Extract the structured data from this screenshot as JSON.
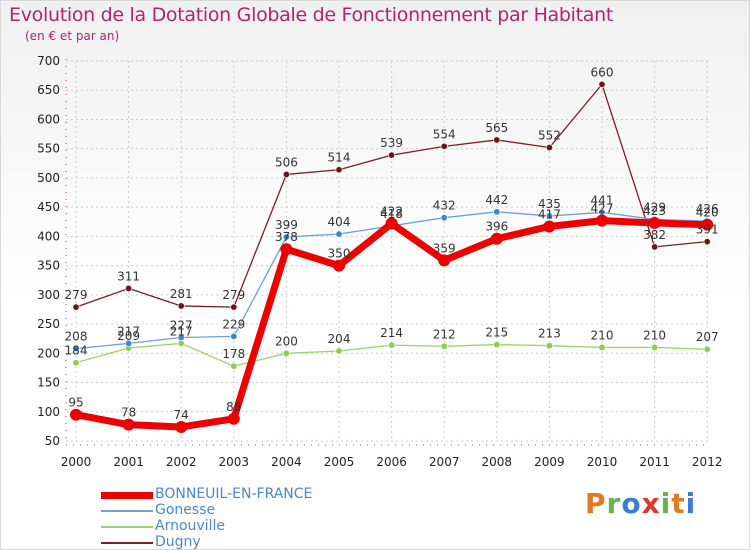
{
  "title": "Evolution de la Dotation Globale de Fonctionnement par Habitant",
  "subtitle": "(en € et par an)",
  "logo": {
    "text": "Proxiti",
    "colors": [
      "#e07a1f",
      "#6ab04c",
      "#3a7bd5",
      "#d93a2b",
      "#6ab04c",
      "#e07a1f",
      "#3a7bd5"
    ]
  },
  "colors": {
    "grid": "#cccccc",
    "axis_marks": "#cc3355",
    "title": "#b0266a",
    "legend_text": "#4a88c7"
  },
  "chart_data": {
    "type": "line",
    "title": "Evolution de la Dotation Globale de Fonctionnement par Habitant",
    "subtitle": "(en € et par an)",
    "xlabel": "",
    "ylabel": "",
    "x": [
      "2000",
      "2001",
      "2002",
      "2003",
      "2004",
      "2005",
      "2006",
      "2007",
      "2008",
      "2009",
      "2010",
      "2011",
      "2012"
    ],
    "yticks": [
      50,
      100,
      150,
      200,
      250,
      300,
      350,
      400,
      450,
      500,
      550,
      600,
      650,
      700
    ],
    "ylim": [
      50,
      700
    ],
    "grid": true,
    "legend_position": "bottom-left",
    "series": [
      {
        "name": "Dugny",
        "color": "#7a1f22",
        "markerColor": "#6b1518",
        "width": 1.3,
        "marker": 3.2,
        "values": [
          279,
          311,
          281,
          279,
          506,
          514,
          539,
          554,
          565,
          552,
          660,
          382,
          391
        ]
      },
      {
        "name": "Arnouville",
        "color": "#9ad46a",
        "markerColor": "#8ccc4e",
        "width": 1.3,
        "marker": 3.2,
        "values": [
          184,
          209,
          217,
          178,
          200,
          204,
          214,
          212,
          215,
          213,
          210,
          210,
          207
        ]
      },
      {
        "name": "Gonesse",
        "color": "#6fa0d6",
        "markerColor": "#3a86cf",
        "width": 1.3,
        "marker": 3.2,
        "values": [
          208,
          217,
          227,
          229,
          399,
          404,
          418,
          432,
          442,
          435,
          441,
          429,
          426
        ]
      },
      {
        "name": "BONNEUIL-EN-FRANCE",
        "color": "#ee0000",
        "markerColor": "#ee0000",
        "width": 7,
        "marker": 6,
        "values": [
          95,
          78,
          74,
          88,
          378,
          350,
          422,
          359,
          396,
          417,
          427,
          423,
          420
        ]
      }
    ],
    "labels": [
      {
        "text": "279",
        "x": "2000",
        "y": 279
      },
      {
        "text": "311",
        "x": "2001",
        "y": 311
      },
      {
        "text": "281",
        "x": "2002",
        "y": 281
      },
      {
        "text": "279",
        "x": "2003",
        "y": 279
      },
      {
        "text": "506",
        "x": "2004",
        "y": 506
      },
      {
        "text": "514",
        "x": "2005",
        "y": 514
      },
      {
        "text": "539",
        "x": "2006",
        "y": 539
      },
      {
        "text": "554",
        "x": "2007",
        "y": 554
      },
      {
        "text": "565",
        "x": "2008",
        "y": 565
      },
      {
        "text": "552",
        "x": "2009",
        "y": 552
      },
      {
        "text": "660",
        "x": "2010",
        "y": 660
      },
      {
        "text": "382",
        "x": "2011",
        "y": 382
      },
      {
        "text": "391",
        "x": "2012",
        "y": 391
      },
      {
        "text": "208",
        "x": "2000",
        "y": 208
      },
      {
        "text": "217",
        "x": "2001",
        "y": 217
      },
      {
        "text": "227",
        "x": "2002",
        "y": 227
      },
      {
        "text": "229",
        "x": "2003",
        "y": 229
      },
      {
        "text": "399",
        "x": "2004",
        "y": 399
      },
      {
        "text": "404",
        "x": "2005",
        "y": 404
      },
      {
        "text": "418",
        "x": "2006",
        "y": 418
      },
      {
        "text": "432",
        "x": "2007",
        "y": 432
      },
      {
        "text": "442",
        "x": "2008",
        "y": 442
      },
      {
        "text": "435",
        "x": "2009",
        "y": 435
      },
      {
        "text": "441",
        "x": "2010",
        "y": 441
      },
      {
        "text": "429",
        "x": "2011",
        "y": 429
      },
      {
        "text": "426",
        "x": "2012",
        "y": 426
      },
      {
        "text": "184",
        "x": "2000",
        "y": 184
      },
      {
        "text": "209",
        "x": "2001",
        "y": 209
      },
      {
        "text": "217",
        "x": "2002",
        "y": 217
      },
      {
        "text": "178",
        "x": "2003",
        "y": 178
      },
      {
        "text": "200",
        "x": "2004",
        "y": 200
      },
      {
        "text": "204",
        "x": "2005",
        "y": 204
      },
      {
        "text": "214",
        "x": "2006",
        "y": 214
      },
      {
        "text": "212",
        "x": "2007",
        "y": 212
      },
      {
        "text": "215",
        "x": "2008",
        "y": 215
      },
      {
        "text": "213",
        "x": "2009",
        "y": 213
      },
      {
        "text": "210",
        "x": "2010",
        "y": 210
      },
      {
        "text": "210",
        "x": "2011",
        "y": 210
      },
      {
        "text": "207",
        "x": "2012",
        "y": 207
      },
      {
        "text": "95",
        "x": "2000",
        "y": 95
      },
      {
        "text": "78",
        "x": "2001",
        "y": 78
      },
      {
        "text": "74",
        "x": "2002",
        "y": 74
      },
      {
        "text": "88",
        "x": "2003",
        "y": 88
      },
      {
        "text": "378",
        "x": "2004",
        "y": 378
      },
      {
        "text": "350",
        "x": "2005",
        "y": 350
      },
      {
        "text": "422",
        "x": "2006",
        "y": 422
      },
      {
        "text": "359",
        "x": "2007",
        "y": 359
      },
      {
        "text": "396",
        "x": "2008",
        "y": 396
      },
      {
        "text": "417",
        "x": "2009",
        "y": 417
      },
      {
        "text": "427",
        "x": "2010",
        "y": 427
      },
      {
        "text": "423",
        "x": "2011",
        "y": 423
      },
      {
        "text": "420",
        "x": "2012",
        "y": 420
      }
    ],
    "legend": [
      {
        "name": "BONNEUIL-EN-FRANCE",
        "color": "#ee0000",
        "thick": true
      },
      {
        "name": "Gonesse",
        "color": "#6fa0d6",
        "thick": false
      },
      {
        "name": "Arnouville",
        "color": "#9ad46a",
        "thick": false
      },
      {
        "name": "Dugny",
        "color": "#7a1f22",
        "thick": false
      }
    ]
  }
}
